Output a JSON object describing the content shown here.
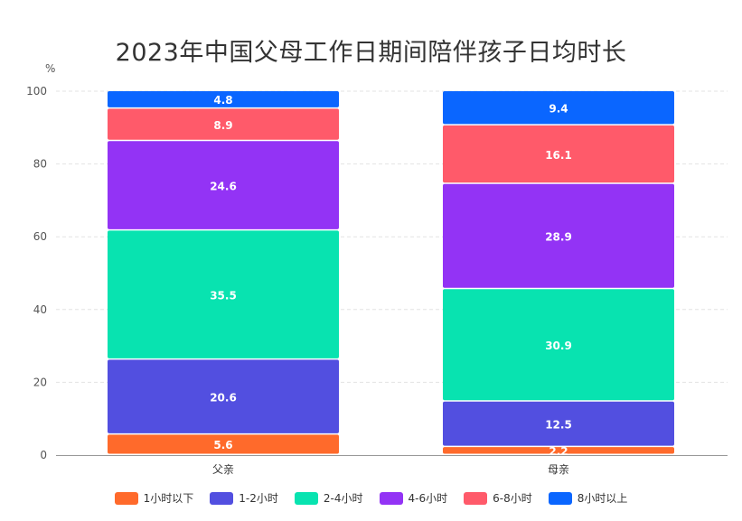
{
  "chart_data": {
    "type": "bar",
    "stacked": true,
    "title": "2023年中国父母工作日期间陪伴孩子日均时长",
    "ylabel": "%",
    "ylim": [
      0,
      100
    ],
    "yticks": [
      0,
      20,
      40,
      60,
      80,
      100
    ],
    "categories": [
      "父亲",
      "母亲"
    ],
    "series": [
      {
        "name": "1小时以下",
        "color": "#ff6a2b",
        "values": [
          5.6,
          2.2
        ]
      },
      {
        "name": "1-2小时",
        "color": "#524fe0",
        "values": [
          20.6,
          12.5
        ]
      },
      {
        "name": "2-4小时",
        "color": "#08e3b0",
        "values": [
          35.5,
          30.9
        ]
      },
      {
        "name": "4-6小时",
        "color": "#9333f5",
        "values": [
          24.6,
          28.9
        ]
      },
      {
        "name": "6-8小时",
        "color": "#ff5a6a",
        "values": [
          8.9,
          16.1
        ]
      },
      {
        "name": "8小时以上",
        "color": "#0a66ff",
        "values": [
          4.8,
          9.4
        ]
      }
    ],
    "legend": "bottom",
    "grid": true
  }
}
